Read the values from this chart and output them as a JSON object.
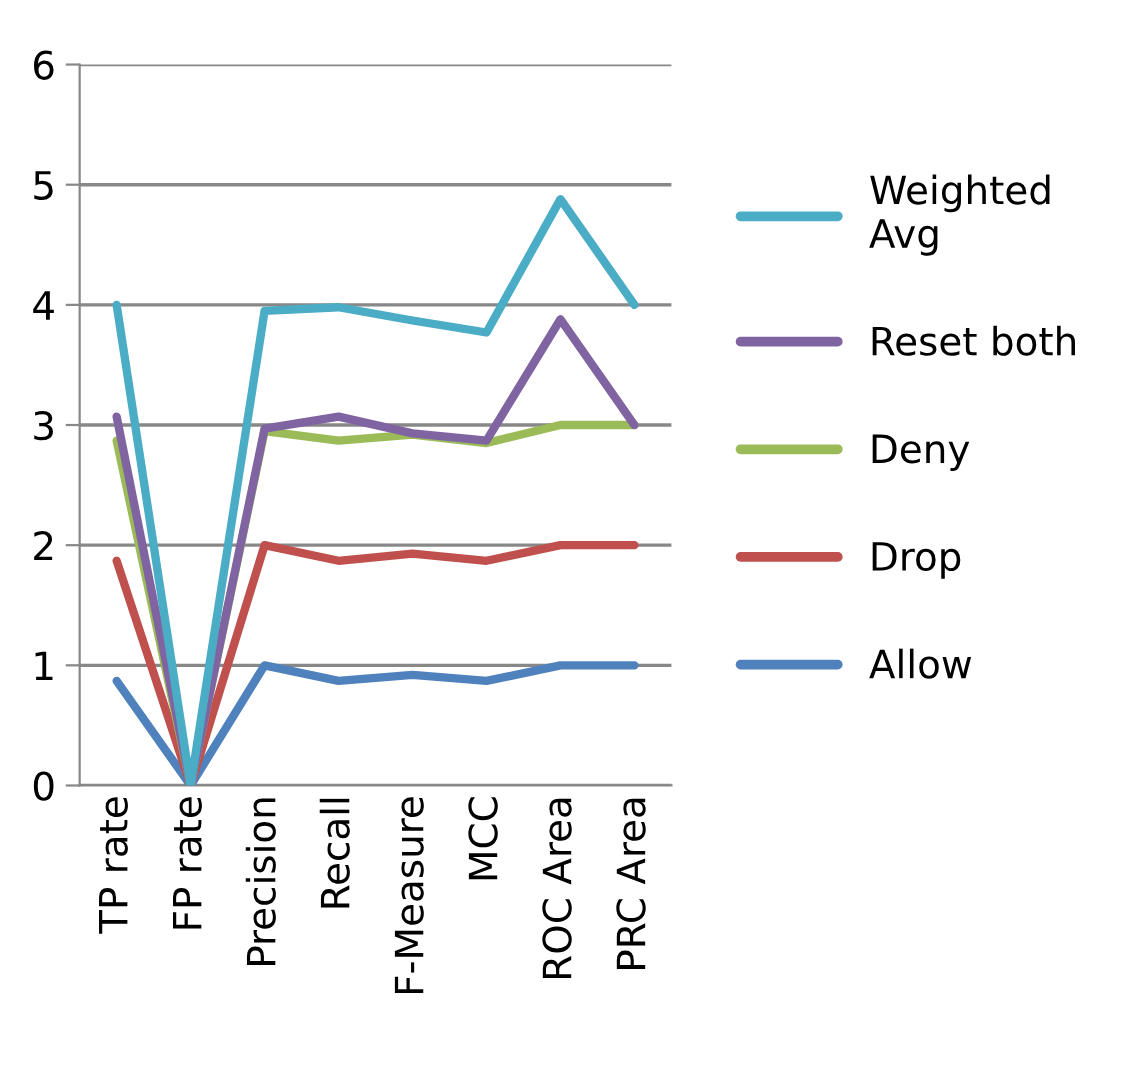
{
  "chart_data": {
    "type": "line",
    "categories": [
      "TP rate",
      "FP rate",
      "Precision",
      "Recall",
      "F-Measure",
      "MCC",
      "ROC Area",
      "PRC Area"
    ],
    "series": [
      {
        "name": "Weighted Avg",
        "color": "#4bacc6",
        "values": [
          4.0,
          0,
          3.95,
          3.98,
          3.87,
          3.77,
          4.88,
          4.0
        ]
      },
      {
        "name": "Reset both",
        "color": "#8064a2",
        "values": [
          3.07,
          0,
          2.97,
          3.07,
          2.93,
          2.87,
          3.88,
          3.0
        ]
      },
      {
        "name": "Deny",
        "color": "#9bbb59",
        "values": [
          2.87,
          0,
          2.95,
          2.87,
          2.92,
          2.85,
          3.0,
          3.0
        ]
      },
      {
        "name": "Drop",
        "color": "#c0504d",
        "values": [
          1.87,
          0,
          2.0,
          1.87,
          1.93,
          1.87,
          2.0,
          2.0
        ]
      },
      {
        "name": "Allow",
        "color": "#4f81bd",
        "values": [
          0.87,
          0,
          1.0,
          0.87,
          0.92,
          0.87,
          1.0,
          1.0
        ]
      }
    ],
    "ylim": [
      0,
      6
    ],
    "yticks": [
      0,
      1,
      2,
      3,
      4,
      5,
      6
    ],
    "grid": "y",
    "legend": "right",
    "marker": "none",
    "line_style": "solid"
  }
}
